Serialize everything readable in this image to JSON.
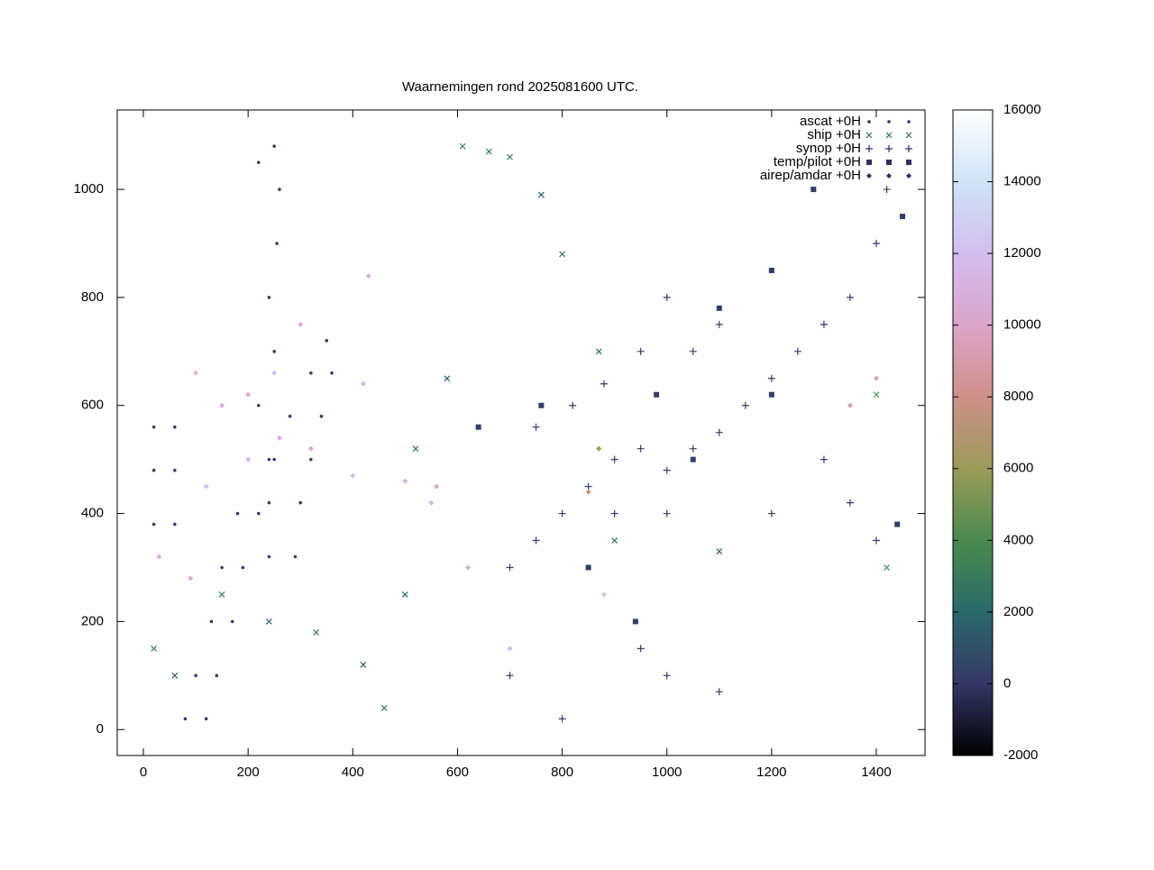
{
  "chart_data": {
    "type": "scatter",
    "title": "Waarnemingen rond 2025081600 UTC.",
    "xlim": [
      -50,
      1493
    ],
    "ylim": [
      -48,
      1147
    ],
    "xticks": [
      0,
      200,
      400,
      600,
      800,
      1000,
      1200,
      1400
    ],
    "yticks": [
      0,
      200,
      400,
      600,
      800,
      1000
    ],
    "zlim": [
      -2000,
      16000
    ],
    "zticks": [
      -2000,
      0,
      2000,
      4000,
      6000,
      8000,
      10000,
      12000,
      14000,
      16000
    ],
    "palette": [
      "#000000",
      "#363668",
      "#2a6a6a",
      "#4a8a4e",
      "#9a9a58",
      "#cf8f8a",
      "#dca4c8",
      "#d2bdf0",
      "#d0e3f6",
      "#ffffff"
    ],
    "legend": "top-right",
    "series": [
      {
        "name": "ascat +0H",
        "marker": "dot",
        "color": "#2f2f66",
        "x": [
          80,
          120,
          100,
          140,
          130,
          170,
          150,
          190,
          180,
          220,
          200,
          240,
          220,
          250,
          240,
          255,
          260,
          20,
          60,
          20,
          60,
          20,
          60,
          240,
          290,
          240,
          300,
          250,
          320,
          280,
          340,
          320,
          360,
          350,
          220,
          250
        ],
        "y": [
          20,
          20,
          100,
          100,
          200,
          200,
          300,
          300,
          400,
          400,
          500,
          500,
          600,
          700,
          800,
          900,
          1000,
          380,
          380,
          480,
          480,
          560,
          560,
          320,
          320,
          420,
          420,
          500,
          500,
          580,
          580,
          660,
          660,
          720,
          1050,
          1080
        ],
        "z": [
          200,
          300,
          200,
          250,
          200,
          300,
          200,
          250,
          200,
          300,
          200,
          250,
          200,
          300,
          200,
          250,
          200,
          300,
          200,
          250,
          200,
          300,
          200,
          250,
          200,
          300,
          200,
          250,
          200,
          300,
          200,
          250,
          200,
          300,
          200,
          250
        ]
      },
      {
        "name": "ship +0H",
        "marker": "cross",
        "color": "#2f6a66",
        "x": [
          20,
          60,
          150,
          240,
          330,
          420,
          460,
          500,
          520,
          580,
          610,
          660,
          700,
          760,
          800,
          870,
          900,
          1100,
          1420,
          1400
        ],
        "y": [
          150,
          100,
          250,
          200,
          180,
          120,
          40,
          250,
          520,
          650,
          1080,
          1070,
          1060,
          990,
          880,
          700,
          350,
          330,
          300,
          620
        ],
        "z": [
          2500,
          1500,
          3000,
          2000,
          2500,
          1500,
          3000,
          2000,
          2500,
          1500,
          3500,
          2000,
          2500,
          1500,
          3000,
          2000,
          2500,
          1500,
          3500,
          4000
        ]
      },
      {
        "name": "synop +0H",
        "marker": "plus",
        "color": "#2f2f66",
        "x": [
          700,
          750,
          800,
          850,
          900,
          950,
          1000,
          1050,
          1100,
          1150,
          1200,
          1250,
          1300,
          1350,
          1400,
          1420,
          1000,
          1050,
          1100,
          950,
          1000,
          1100,
          700,
          800,
          1300,
          1350,
          1200,
          1400,
          900,
          1000,
          750,
          820,
          880,
          950
        ],
        "y": [
          300,
          350,
          400,
          450,
          500,
          520,
          480,
          520,
          550,
          600,
          650,
          700,
          750,
          800,
          900,
          1000,
          800,
          700,
          750,
          150,
          100,
          70,
          100,
          20,
          500,
          420,
          400,
          350,
          400,
          400,
          560,
          600,
          640,
          700
        ],
        "z": [
          200,
          300,
          200,
          500,
          300,
          200,
          400,
          300,
          200,
          300,
          200,
          300,
          200,
          300,
          200,
          300,
          200,
          300,
          200,
          300,
          200,
          300,
          200,
          300,
          200,
          300,
          200,
          300,
          200,
          300,
          200,
          300,
          200,
          300
        ]
      },
      {
        "name": "temp/pilot +0H",
        "marker": "square",
        "color": "#2f2f66",
        "x": [
          1280,
          1450,
          1200,
          1100,
          980,
          1050,
          940,
          850,
          1440,
          1200,
          760,
          640
        ],
        "y": [
          1000,
          950,
          850,
          780,
          620,
          500,
          200,
          300,
          380,
          620,
          600,
          560
        ],
        "z": [
          200,
          300,
          200,
          300,
          200,
          300,
          200,
          300,
          200,
          300,
          200,
          300
        ]
      },
      {
        "name": "airep/amdar +0H",
        "marker": "diamond",
        "color": "#2f2f66",
        "x": [
          30,
          90,
          120,
          200,
          260,
          320,
          400,
          500,
          560,
          150,
          250,
          420,
          620,
          550,
          880,
          1350,
          100,
          200,
          430,
          700,
          1400,
          300,
          850,
          870
        ],
        "y": [
          320,
          280,
          450,
          500,
          540,
          520,
          470,
          460,
          450,
          600,
          660,
          640,
          300,
          420,
          250,
          600,
          660,
          620,
          840,
          150,
          650,
          750,
          440,
          520
        ],
        "z": [
          11000,
          10500,
          12000,
          11500,
          11000,
          10500,
          12000,
          11500,
          10000,
          11000,
          12000,
          11500,
          10500,
          11000,
          12000,
          9000,
          11500,
          10500,
          11000,
          12000,
          9500,
          11000,
          8000,
          6000
        ]
      }
    ]
  }
}
